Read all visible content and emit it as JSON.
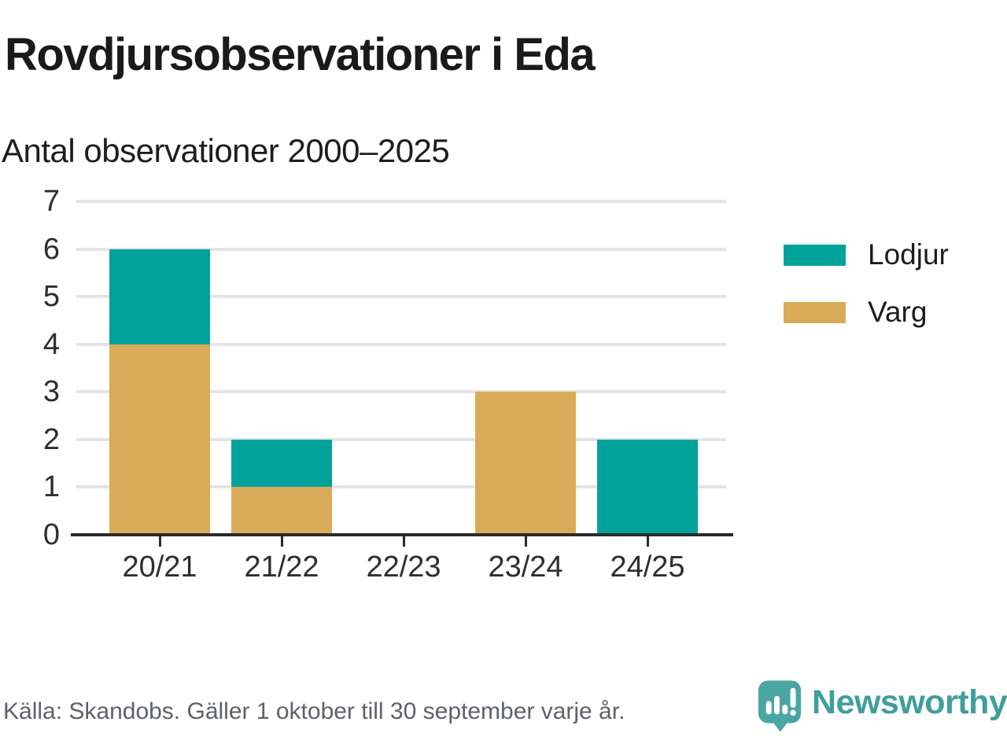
{
  "header": {
    "title": "Rovdjursobservationer i Eda",
    "subtitle": "Antal observationer 2000–2025"
  },
  "chart_data": {
    "type": "bar",
    "stacked": true,
    "title": "Rovdjursobservationer i Eda",
    "subtitle": "Antal observationer 2000–2025",
    "categories": [
      "20/21",
      "21/22",
      "22/23",
      "23/24",
      "24/25"
    ],
    "series": [
      {
        "name": "Varg",
        "color": "#d9ab58",
        "stack_order": "bottom",
        "values": [
          4,
          1,
          0,
          3,
          0
        ]
      },
      {
        "name": "Lodjur",
        "color": "#00a29a",
        "stack_order": "top",
        "values": [
          2,
          1,
          0,
          0,
          2
        ]
      }
    ],
    "totals": [
      6,
      2,
      0,
      3,
      2
    ],
    "xlabel": "",
    "ylabel": "",
    "ylim": [
      0,
      7
    ],
    "yticks": [
      0,
      1,
      2,
      3,
      4,
      5,
      6,
      7
    ],
    "grid": true,
    "legend_position": "right",
    "legend": [
      {
        "label": "Lodjur",
        "color": "#00a29a"
      },
      {
        "label": "Varg",
        "color": "#d9ab58"
      }
    ]
  },
  "footer": {
    "source": "Källa: Skandobs. Gäller 1 oktober till 30 september varje år.",
    "brand": "Newsworthy"
  },
  "colors": {
    "lodjur_teal": "#00a29a",
    "varg_gold": "#d9ab58",
    "gridline": "#e4e4e4",
    "axis": "#2b2b2b",
    "footer_gray": "#5e6267",
    "logo_teal": "#4aa6a2",
    "wordmark_teal": "#3f9f9c"
  }
}
